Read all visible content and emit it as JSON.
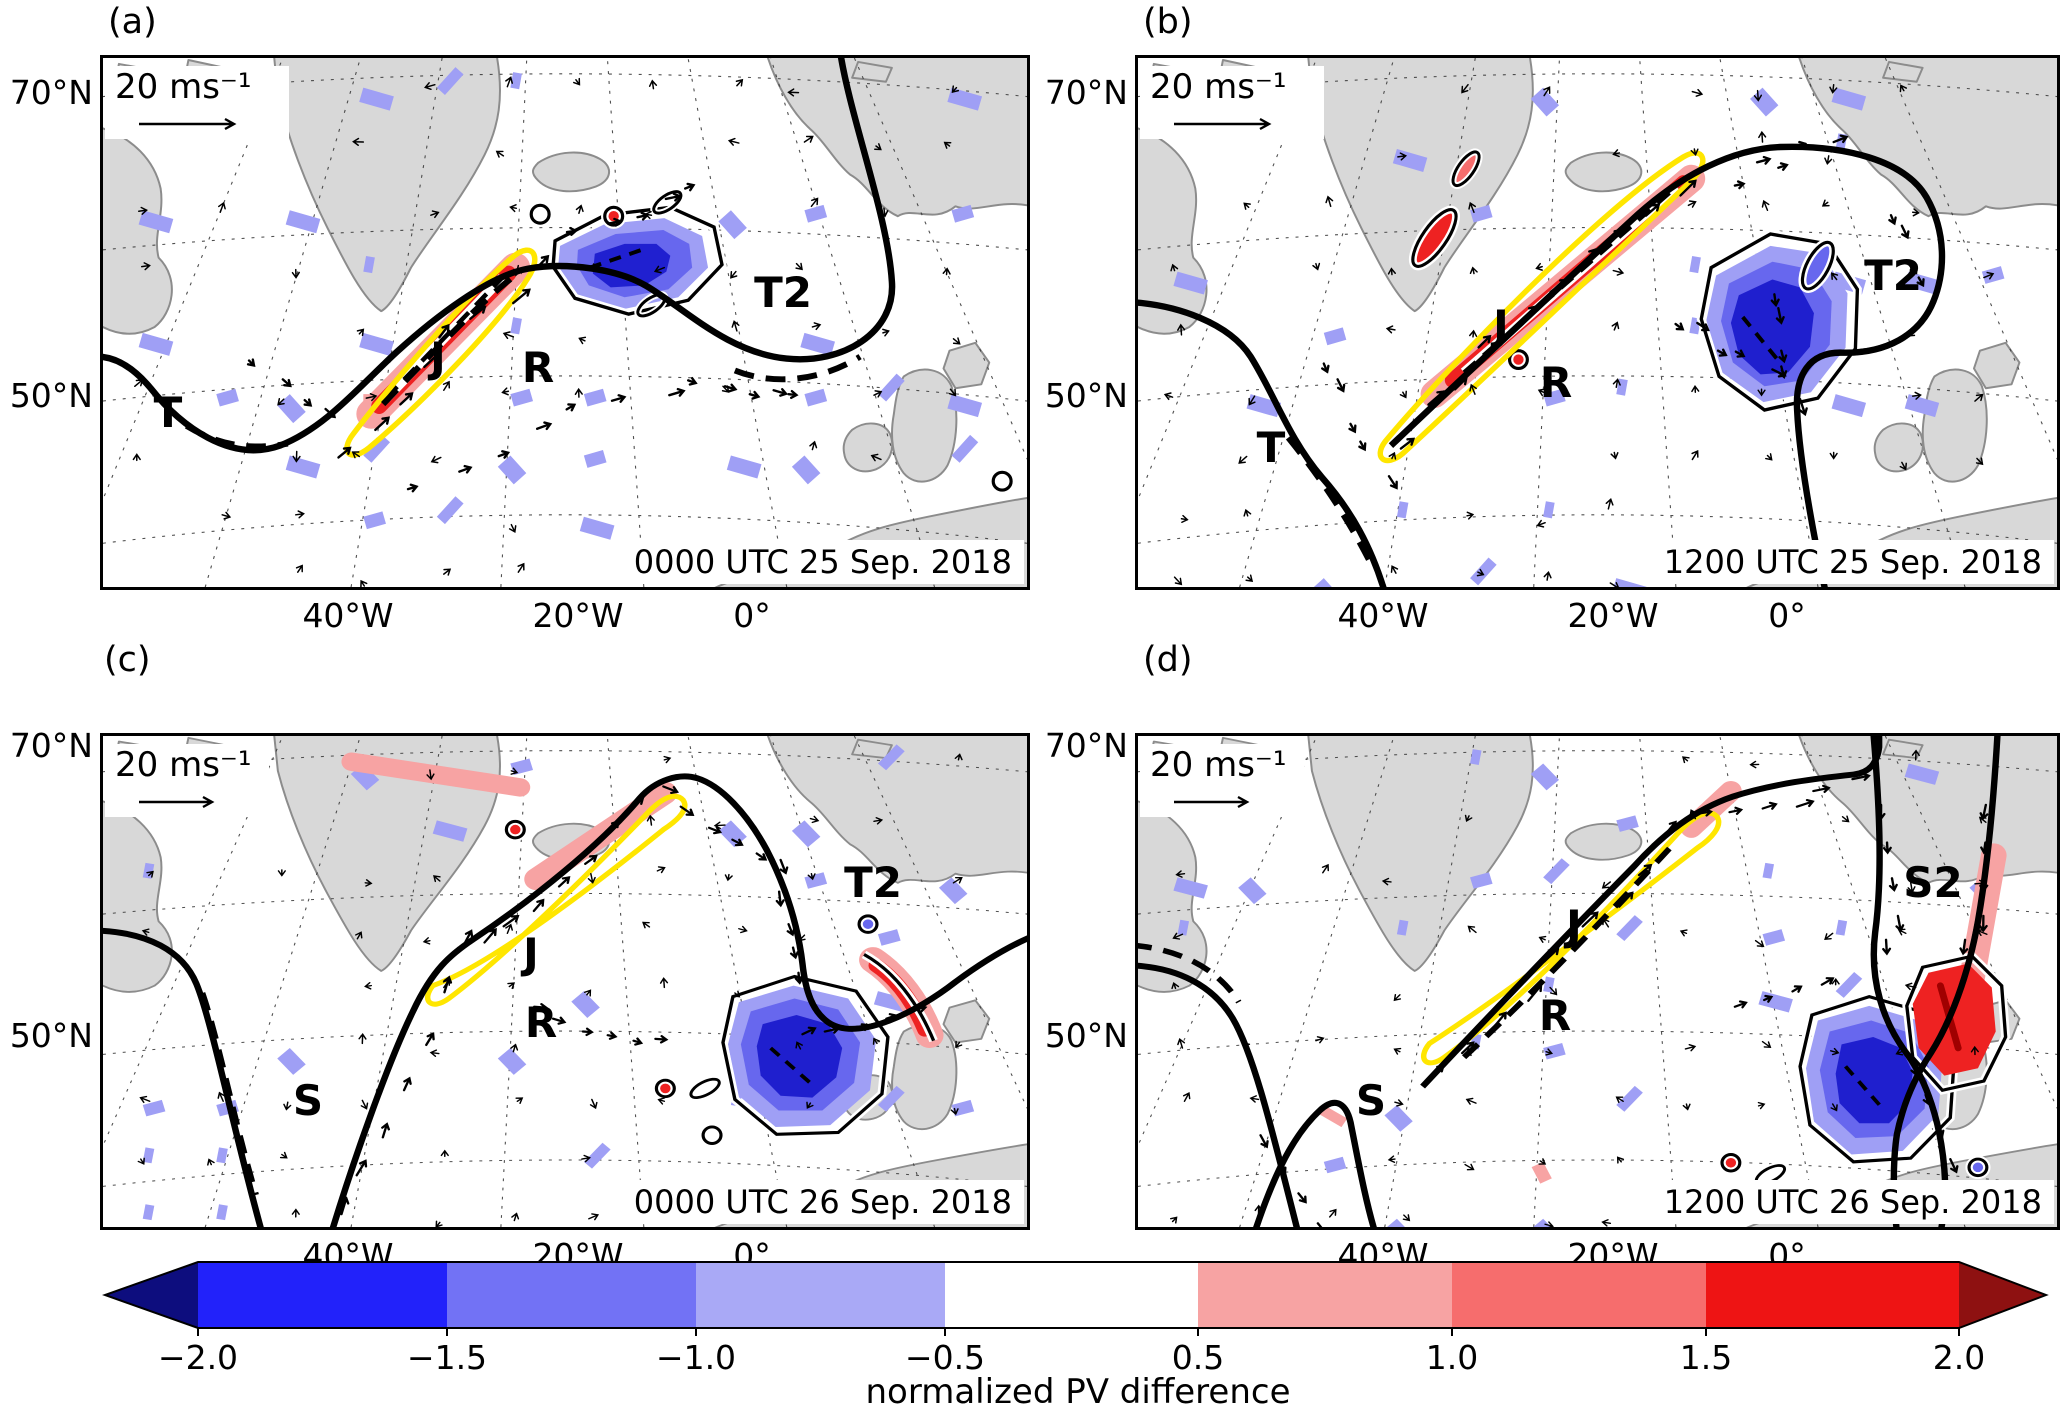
{
  "panels": [
    {
      "id": "a",
      "label": "(a)",
      "timestamp": "0000 UTC 25 Sep. 2018",
      "wind_ref": "20 ms⁻¹",
      "lat_ticks": [
        "70°N",
        "50°N"
      ],
      "lon_ticks": [
        "40°W",
        "20°W",
        "0°"
      ],
      "markers": [
        {
          "label": "T"
        },
        {
          "label": "J"
        },
        {
          "label": "R"
        },
        {
          "label": "T2"
        }
      ]
    },
    {
      "id": "b",
      "label": "(b)",
      "timestamp": "1200 UTC 25 Sep. 2018",
      "wind_ref": "20 ms⁻¹",
      "lat_ticks": [
        "70°N",
        "50°N"
      ],
      "lon_ticks": [
        "40°W",
        "20°W",
        "0°"
      ],
      "markers": [
        {
          "label": "T"
        },
        {
          "label": "J"
        },
        {
          "label": "R"
        },
        {
          "label": "T2"
        }
      ]
    },
    {
      "id": "c",
      "label": "(c)",
      "timestamp": "0000 UTC 26 Sep. 2018",
      "wind_ref": "20 ms⁻¹",
      "lat_ticks": [
        "70°N",
        "50°N"
      ],
      "lon_ticks": [
        "40°W",
        "20°W",
        "0°"
      ],
      "markers": [
        {
          "label": "S"
        },
        {
          "label": "J"
        },
        {
          "label": "R"
        },
        {
          "label": "T2"
        }
      ]
    },
    {
      "id": "d",
      "label": "(d)",
      "timestamp": "1200 UTC 26 Sep. 2018",
      "wind_ref": "20 ms⁻¹",
      "lat_ticks": [
        "70°N",
        "50°N"
      ],
      "lon_ticks": [
        "40°W",
        "20°W",
        "0°"
      ],
      "markers": [
        {
          "label": "S"
        },
        {
          "label": "J"
        },
        {
          "label": "R"
        },
        {
          "label": "S2"
        }
      ]
    }
  ],
  "colorbar": {
    "title": "normalized PV difference",
    "tick_labels": [
      "−2.0",
      "−1.5",
      "−1.0",
      "−0.5",
      "0.5",
      "1.0",
      "1.5",
      "2.0"
    ],
    "segment_colors": [
      "#2222fa",
      "#7272f5",
      "#a9a9f6",
      "#ffffff",
      "#f7a3a3",
      "#f66d6d",
      "#ee1414"
    ],
    "under_arrow_color": "#0d0d7e",
    "over_arrow_color": "#8e1111"
  },
  "chart_data": {
    "type": "heatmap",
    "title": "normalized PV difference",
    "panels": [
      {
        "label": "(a)",
        "time": "0000 UTC 25 Sep. 2018",
        "annotations": [
          "T",
          "J",
          "R",
          "T2"
        ]
      },
      {
        "label": "(b)",
        "time": "1200 UTC 25 Sep. 2018",
        "annotations": [
          "T",
          "J",
          "R",
          "T2"
        ]
      },
      {
        "label": "(c)",
        "time": "0000 UTC 26 Sep. 2018",
        "annotations": [
          "S",
          "J",
          "R",
          "T2"
        ]
      },
      {
        "label": "(d)",
        "time": "1200 UTC 26 Sep. 2018",
        "annotations": [
          "S",
          "J",
          "R",
          "S2"
        ]
      }
    ],
    "x_tick_labels": [
      "40°W",
      "20°W",
      "0°"
    ],
    "y_tick_labels": [
      "70°N",
      "50°N"
    ],
    "colorbar_levels": [
      -2.0,
      -1.5,
      -1.0,
      -0.5,
      0.5,
      1.0,
      1.5,
      2.0
    ],
    "colorbar_label": "normalized PV difference",
    "wind_reference": "20 ms⁻¹",
    "legend_position": "bottom"
  }
}
